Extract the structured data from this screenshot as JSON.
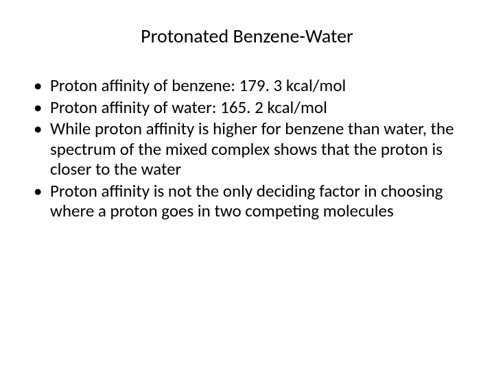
{
  "slide": {
    "title": "Protonated Benzene-Water",
    "title_fontsize": 28,
    "body_fontsize": 25,
    "background_color": "#ffffff",
    "text_color": "#000000",
    "bullets": [
      "Proton affinity of benzene: 179. 3 kcal/mol",
      "Proton affinity of water: 165. 2 kcal/mol",
      "While proton affinity is higher for benzene than water, the spectrum of the mixed complex shows that the proton is closer to the water",
      "Proton affinity is not the only deciding factor in choosing where a proton goes in two competing molecules"
    ]
  }
}
